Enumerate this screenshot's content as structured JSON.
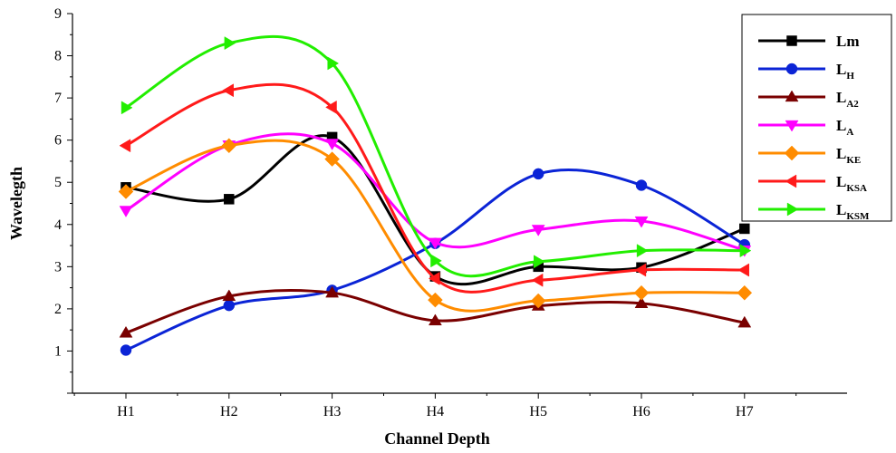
{
  "chart_data": {
    "type": "line",
    "xlabel": "Channel Depth",
    "ylabel": "Wavelegth",
    "categories": [
      "H1",
      "H2",
      "H3",
      "H4",
      "H5",
      "H6",
      "H7"
    ],
    "ylim": [
      0,
      9
    ],
    "yticks": [
      1,
      2,
      3,
      4,
      5,
      6,
      7,
      8,
      9
    ],
    "grid": false,
    "legend_position": "top-right",
    "series": [
      {
        "name": "Lm",
        "label_main": "Lm",
        "label_sub": "",
        "color": "#000000",
        "marker": "square",
        "values": [
          4.88,
          4.6,
          6.07,
          2.77,
          3.0,
          2.98,
          3.9
        ]
      },
      {
        "name": "LH",
        "label_main": "L",
        "label_sub": "H",
        "color": "#0b24d6",
        "marker": "circle",
        "values": [
          1.02,
          2.08,
          2.44,
          3.55,
          5.2,
          4.93,
          3.52
        ]
      },
      {
        "name": "LA2",
        "label_main": "L",
        "label_sub": "A2",
        "color": "#7a0000",
        "marker": "triangle-up",
        "values": [
          1.43,
          2.3,
          2.38,
          1.72,
          2.07,
          2.13,
          1.67
        ]
      },
      {
        "name": "LA",
        "label_main": "L",
        "label_sub": "A",
        "color": "#ff00ff",
        "marker": "triangle-down",
        "values": [
          4.33,
          5.88,
          5.92,
          3.57,
          3.88,
          4.08,
          3.39
        ]
      },
      {
        "name": "LKE",
        "label_main": "L",
        "label_sub": "KE",
        "color": "#ff8c00",
        "marker": "diamond",
        "values": [
          4.78,
          5.87,
          5.55,
          2.21,
          2.19,
          2.38,
          2.38
        ]
      },
      {
        "name": "LKSA",
        "label_main": "L",
        "label_sub": "KSA",
        "color": "#ff1a1a",
        "marker": "triangle-left",
        "values": [
          5.87,
          7.18,
          6.78,
          2.72,
          2.68,
          2.92,
          2.92
        ]
      },
      {
        "name": "LKSM",
        "label_main": "L",
        "label_sub": "KSM",
        "color": "#22ee00",
        "marker": "triangle-right",
        "values": [
          6.77,
          8.3,
          7.82,
          3.14,
          3.12,
          3.38,
          3.38
        ]
      }
    ]
  }
}
